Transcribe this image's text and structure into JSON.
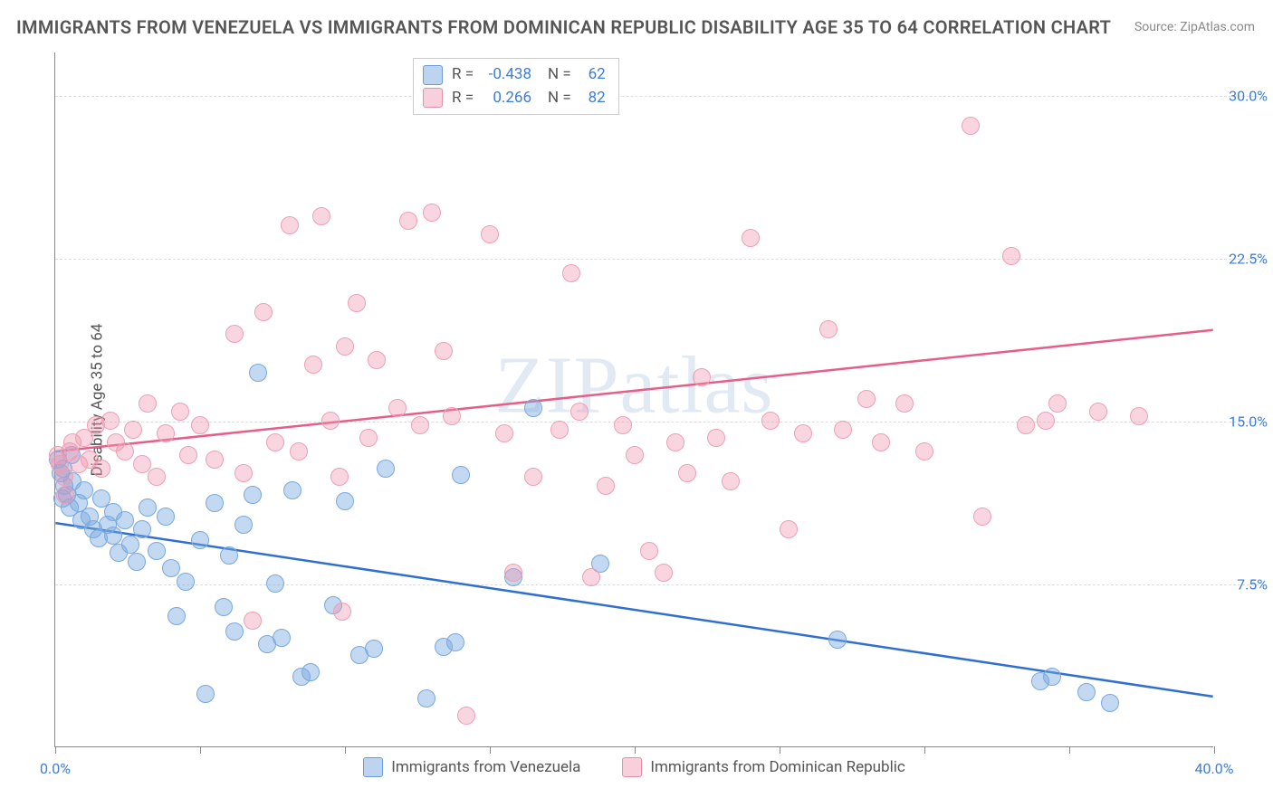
{
  "title": "IMMIGRANTS FROM VENEZUELA VS IMMIGRANTS FROM DOMINICAN REPUBLIC DISABILITY AGE 35 TO 64 CORRELATION CHART",
  "source": "Source: ZipAtlas.com",
  "watermark": "ZIPatlas",
  "ylabel": "Disability Age 35 to 64",
  "chart": {
    "type": "scatter",
    "xlim": [
      0,
      40
    ],
    "ylim": [
      0,
      32
    ],
    "yticks": [
      7.5,
      15.0,
      22.5,
      30.0
    ],
    "ytick_labels": [
      "7.5%",
      "15.0%",
      "22.5%",
      "30.0%"
    ],
    "xticks": [
      0,
      5,
      10,
      15,
      20,
      25,
      30,
      35,
      40
    ],
    "xtick_labels": {
      "0": "0.0%",
      "40": "40.0%"
    },
    "grid_color": "#dddddd",
    "background_color": "#ffffff",
    "marker_radius": 10,
    "marker_stroke_width": 1.2,
    "trend_line_width": 2.5
  },
  "series": [
    {
      "id": "venezuela",
      "label": "Immigrants from Venezuela",
      "fill_color": "rgba(122, 169, 224, 0.45)",
      "stroke_color": "#7aa9e0",
      "swatch_fill": "rgba(122, 169, 224, 0.5)",
      "swatch_stroke": "#6a9dd6",
      "trend_color": "#2f6fd0",
      "R": "-0.438",
      "N": "62",
      "trend": {
        "x1": 0,
        "y1": 10.3,
        "x2": 40,
        "y2": 2.3
      },
      "points": [
        [
          0.1,
          13.2
        ],
        [
          0.2,
          12.6
        ],
        [
          0.3,
          12.0
        ],
        [
          0.25,
          11.4
        ],
        [
          0.28,
          12.8
        ],
        [
          0.4,
          11.6
        ],
        [
          0.5,
          11.0
        ],
        [
          0.55,
          13.4
        ],
        [
          0.6,
          12.2
        ],
        [
          0.8,
          11.2
        ],
        [
          0.9,
          10.4
        ],
        [
          1.0,
          11.8
        ],
        [
          1.2,
          10.6
        ],
        [
          1.3,
          10.0
        ],
        [
          1.5,
          9.6
        ],
        [
          1.6,
          11.4
        ],
        [
          1.8,
          10.2
        ],
        [
          2.0,
          9.7
        ],
        [
          2.0,
          10.8
        ],
        [
          2.2,
          8.9
        ],
        [
          2.4,
          10.4
        ],
        [
          2.6,
          9.3
        ],
        [
          2.8,
          8.5
        ],
        [
          3.0,
          10.0
        ],
        [
          3.2,
          11.0
        ],
        [
          3.5,
          9.0
        ],
        [
          3.8,
          10.6
        ],
        [
          4.0,
          8.2
        ],
        [
          4.2,
          6.0
        ],
        [
          4.5,
          7.6
        ],
        [
          5.0,
          9.5
        ],
        [
          5.2,
          2.4
        ],
        [
          5.5,
          11.2
        ],
        [
          5.8,
          6.4
        ],
        [
          6.0,
          8.8
        ],
        [
          6.2,
          5.3
        ],
        [
          6.5,
          10.2
        ],
        [
          6.8,
          11.6
        ],
        [
          7.0,
          17.2
        ],
        [
          7.3,
          4.7
        ],
        [
          7.6,
          7.5
        ],
        [
          7.8,
          5.0
        ],
        [
          8.2,
          11.8
        ],
        [
          8.5,
          3.2
        ],
        [
          8.8,
          3.4
        ],
        [
          9.6,
          6.5
        ],
        [
          10.0,
          11.3
        ],
        [
          10.5,
          4.2
        ],
        [
          11.0,
          4.5
        ],
        [
          11.4,
          12.8
        ],
        [
          12.8,
          2.2
        ],
        [
          13.4,
          4.6
        ],
        [
          13.8,
          4.8
        ],
        [
          14.0,
          12.5
        ],
        [
          15.8,
          7.8
        ],
        [
          16.5,
          15.6
        ],
        [
          18.8,
          8.4
        ],
        [
          27.0,
          4.9
        ],
        [
          34.0,
          3.0
        ],
        [
          34.4,
          3.2
        ],
        [
          35.6,
          2.5
        ],
        [
          36.4,
          2.0
        ]
      ]
    },
    {
      "id": "dominican",
      "label": "Immigrants from Dominican Republic",
      "fill_color": "rgba(240, 150, 175, 0.40)",
      "stroke_color": "#eda0b4",
      "swatch_fill": "rgba(240, 150, 175, 0.45)",
      "swatch_stroke": "#e690a7",
      "trend_color": "#e85d87",
      "R": "0.266",
      "N": "82",
      "trend": {
        "x1": 0,
        "y1": 13.6,
        "x2": 40,
        "y2": 19.2
      },
      "points": [
        [
          0.1,
          13.4
        ],
        [
          0.15,
          13.0
        ],
        [
          0.3,
          12.4
        ],
        [
          0.35,
          11.6
        ],
        [
          0.5,
          13.6
        ],
        [
          0.6,
          14.0
        ],
        [
          0.8,
          13.0
        ],
        [
          1.0,
          14.2
        ],
        [
          1.2,
          13.2
        ],
        [
          1.4,
          14.8
        ],
        [
          1.6,
          12.8
        ],
        [
          1.9,
          15.0
        ],
        [
          2.1,
          14.0
        ],
        [
          2.4,
          13.6
        ],
        [
          2.7,
          14.6
        ],
        [
          3.0,
          13.0
        ],
        [
          3.2,
          15.8
        ],
        [
          3.5,
          12.4
        ],
        [
          3.8,
          14.4
        ],
        [
          4.3,
          15.4
        ],
        [
          4.6,
          13.4
        ],
        [
          5.0,
          14.8
        ],
        [
          5.5,
          13.2
        ],
        [
          6.2,
          19.0
        ],
        [
          6.5,
          12.6
        ],
        [
          7.2,
          20.0
        ],
        [
          7.6,
          14.0
        ],
        [
          8.1,
          24.0
        ],
        [
          8.4,
          13.6
        ],
        [
          8.9,
          17.6
        ],
        [
          9.2,
          24.4
        ],
        [
          9.5,
          15.0
        ],
        [
          9.8,
          12.4
        ],
        [
          10.0,
          18.4
        ],
        [
          10.4,
          20.4
        ],
        [
          10.8,
          14.2
        ],
        [
          11.1,
          17.8
        ],
        [
          11.8,
          15.6
        ],
        [
          12.2,
          24.2
        ],
        [
          12.6,
          14.8
        ],
        [
          13.0,
          24.6
        ],
        [
          13.4,
          18.2
        ],
        [
          13.7,
          15.2
        ],
        [
          15.0,
          23.6
        ],
        [
          15.5,
          14.4
        ],
        [
          15.8,
          8.0
        ],
        [
          16.5,
          12.4
        ],
        [
          17.4,
          14.6
        ],
        [
          17.8,
          21.8
        ],
        [
          18.1,
          15.4
        ],
        [
          18.5,
          7.8
        ],
        [
          19.0,
          12.0
        ],
        [
          19.6,
          14.8
        ],
        [
          20.0,
          13.4
        ],
        [
          20.5,
          9.0
        ],
        [
          21.0,
          8.0
        ],
        [
          21.4,
          14.0
        ],
        [
          21.8,
          12.6
        ],
        [
          22.3,
          17.0
        ],
        [
          22.8,
          14.2
        ],
        [
          23.3,
          12.2
        ],
        [
          24.0,
          23.4
        ],
        [
          24.7,
          15.0
        ],
        [
          25.3,
          10.0
        ],
        [
          25.8,
          14.4
        ],
        [
          26.7,
          19.2
        ],
        [
          27.2,
          14.6
        ],
        [
          28.0,
          16.0
        ],
        [
          28.5,
          14.0
        ],
        [
          29.3,
          15.8
        ],
        [
          30.0,
          13.6
        ],
        [
          31.6,
          28.6
        ],
        [
          32.0,
          10.6
        ],
        [
          33.0,
          22.6
        ],
        [
          33.5,
          14.8
        ],
        [
          34.2,
          15.0
        ],
        [
          34.6,
          15.8
        ],
        [
          36.0,
          15.4
        ],
        [
          37.4,
          15.2
        ],
        [
          14.2,
          1.4
        ],
        [
          6.8,
          5.8
        ],
        [
          9.9,
          6.2
        ]
      ]
    }
  ]
}
